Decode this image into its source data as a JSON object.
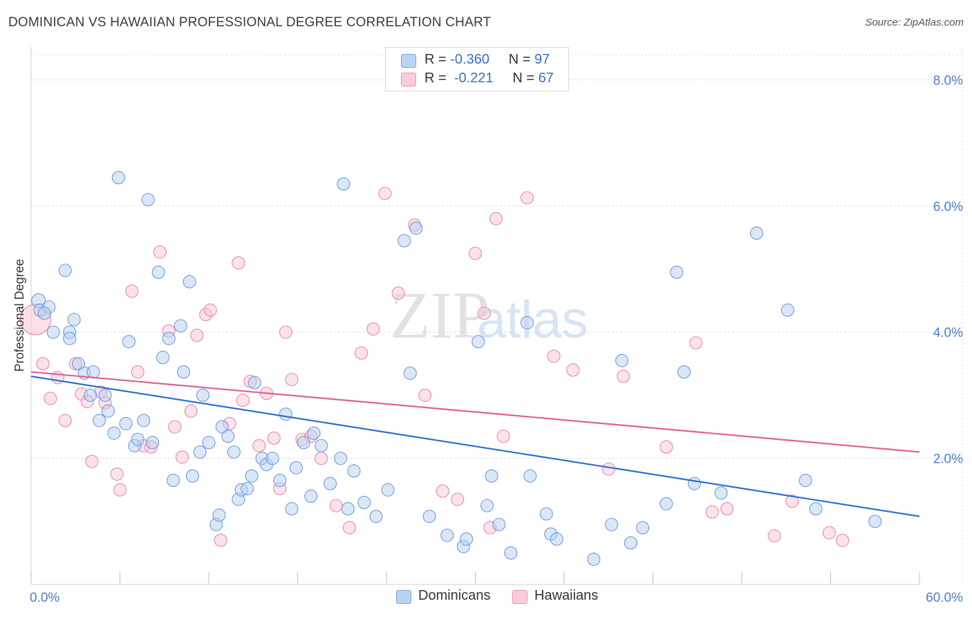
{
  "header": {
    "title": "DOMINICAN VS HAWAIIAN PROFESSIONAL DEGREE CORRELATION CHART",
    "source": "Source: ZipAtlas.com"
  },
  "watermark": {
    "zip": "ZIP",
    "atlas": "atlas"
  },
  "legend": {
    "rows": [
      {
        "r_label": "R =",
        "r_value": "-0.360",
        "n_label": "N =",
        "n_value": "97"
      },
      {
        "r_label": "R =",
        "r_value": "-0.221",
        "n_label": "N =",
        "n_value": "67"
      }
    ]
  },
  "bottom_legend": {
    "dominicans": "Dominicans",
    "hawaiians": "Hawaiians"
  },
  "chart_data": {
    "type": "scatter",
    "ylabel": "Professional Degree",
    "xlim": [
      0,
      60
    ],
    "ylim": [
      0,
      8.0
    ],
    "x_tick_labels": [
      "0.0%",
      "60.0%"
    ],
    "y_ticks": [
      2.0,
      4.0,
      6.0,
      8.0
    ],
    "y_tick_labels": [
      "2.0%",
      "4.0%",
      "6.0%",
      "8.0%"
    ],
    "grid": true,
    "colors": {
      "Dominicans": "#a9c8ee",
      "Dominicans_line": "#2a6fd1",
      "Hawaiians": "#f6bcd0",
      "Hawaiians_line": "#e0608f"
    },
    "series": [
      {
        "name": "Dominicans",
        "trend": {
          "x": [
            0,
            60
          ],
          "y": [
            3.3,
            1.08
          ]
        },
        "points": [
          [
            0.5,
            4.5
          ],
          [
            0.6,
            4.35
          ],
          [
            1.2,
            4.4
          ],
          [
            0.9,
            4.3
          ],
          [
            1.5,
            4.0
          ],
          [
            2.3,
            4.98
          ],
          [
            2.6,
            4.0
          ],
          [
            2.6,
            3.9
          ],
          [
            2.9,
            4.2
          ],
          [
            3.2,
            3.5
          ],
          [
            3.6,
            3.35
          ],
          [
            4.0,
            3.0
          ],
          [
            4.2,
            3.37
          ],
          [
            4.6,
            2.6
          ],
          [
            5.0,
            3.0
          ],
          [
            5.2,
            2.75
          ],
          [
            5.6,
            2.4
          ],
          [
            5.9,
            6.45
          ],
          [
            6.4,
            2.55
          ],
          [
            6.6,
            3.85
          ],
          [
            7.0,
            2.2
          ],
          [
            7.2,
            2.3
          ],
          [
            7.6,
            2.6
          ],
          [
            7.9,
            6.1
          ],
          [
            8.2,
            2.25
          ],
          [
            8.6,
            4.95
          ],
          [
            8.9,
            3.6
          ],
          [
            9.3,
            3.9
          ],
          [
            9.6,
            1.65
          ],
          [
            10.1,
            4.1
          ],
          [
            10.3,
            3.37
          ],
          [
            10.7,
            4.8
          ],
          [
            10.9,
            1.72
          ],
          [
            11.4,
            2.1
          ],
          [
            11.6,
            3.0
          ],
          [
            12.0,
            2.25
          ],
          [
            12.5,
            0.95
          ],
          [
            12.7,
            1.1
          ],
          [
            12.9,
            2.5
          ],
          [
            13.3,
            2.35
          ],
          [
            13.7,
            2.1
          ],
          [
            14.0,
            1.35
          ],
          [
            14.2,
            1.5
          ],
          [
            14.6,
            1.52
          ],
          [
            14.9,
            1.72
          ],
          [
            15.1,
            3.2
          ],
          [
            15.6,
            2.0
          ],
          [
            15.9,
            1.9
          ],
          [
            16.3,
            2.0
          ],
          [
            16.8,
            1.65
          ],
          [
            17.2,
            2.7
          ],
          [
            17.6,
            1.2
          ],
          [
            17.9,
            1.85
          ],
          [
            18.4,
            2.25
          ],
          [
            18.9,
            1.4
          ],
          [
            19.1,
            2.4
          ],
          [
            19.6,
            2.2
          ],
          [
            20.2,
            1.6
          ],
          [
            20.9,
            2.0
          ],
          [
            21.1,
            6.35
          ],
          [
            21.4,
            1.2
          ],
          [
            21.8,
            1.8
          ],
          [
            22.5,
            1.3
          ],
          [
            23.3,
            1.08
          ],
          [
            24.1,
            1.5
          ],
          [
            25.2,
            5.45
          ],
          [
            25.6,
            3.35
          ],
          [
            26.0,
            5.65
          ],
          [
            26.9,
            1.08
          ],
          [
            28.1,
            0.78
          ],
          [
            29.2,
            0.6
          ],
          [
            29.4,
            0.72
          ],
          [
            30.2,
            3.85
          ],
          [
            30.8,
            1.25
          ],
          [
            31.1,
            1.72
          ],
          [
            31.6,
            0.95
          ],
          [
            32.4,
            0.5
          ],
          [
            33.5,
            4.15
          ],
          [
            33.7,
            1.72
          ],
          [
            34.8,
            1.12
          ],
          [
            35.1,
            0.8
          ],
          [
            35.5,
            0.72
          ],
          [
            38.0,
            0.4
          ],
          [
            39.2,
            0.95
          ],
          [
            39.9,
            3.55
          ],
          [
            40.5,
            0.66
          ],
          [
            41.3,
            0.9
          ],
          [
            42.9,
            1.28
          ],
          [
            43.6,
            4.95
          ],
          [
            44.1,
            3.37
          ],
          [
            44.8,
            1.6
          ],
          [
            46.6,
            1.45
          ],
          [
            49.0,
            5.57
          ],
          [
            51.1,
            4.35
          ],
          [
            52.3,
            1.65
          ],
          [
            53.0,
            1.2
          ],
          [
            57.0,
            1.0
          ]
        ]
      },
      {
        "name": "Hawaiians",
        "trend": {
          "x": [
            0,
            60
          ],
          "y": [
            3.37,
            2.1
          ]
        },
        "points": [
          [
            0.3,
            4.2
          ],
          [
            0.8,
            3.5
          ],
          [
            1.3,
            2.95
          ],
          [
            1.8,
            3.28
          ],
          [
            2.3,
            2.6
          ],
          [
            3.0,
            3.5
          ],
          [
            3.4,
            3.02
          ],
          [
            3.8,
            2.9
          ],
          [
            4.1,
            1.95
          ],
          [
            4.7,
            3.05
          ],
          [
            5.0,
            2.88
          ],
          [
            5.8,
            1.75
          ],
          [
            6.0,
            1.5
          ],
          [
            6.8,
            4.65
          ],
          [
            7.2,
            3.37
          ],
          [
            7.6,
            2.2
          ],
          [
            8.1,
            2.18
          ],
          [
            8.7,
            5.27
          ],
          [
            9.3,
            4.02
          ],
          [
            9.7,
            2.5
          ],
          [
            10.2,
            2.02
          ],
          [
            10.8,
            2.75
          ],
          [
            11.2,
            3.95
          ],
          [
            11.8,
            4.28
          ],
          [
            12.1,
            4.35
          ],
          [
            12.8,
            0.7
          ],
          [
            13.4,
            2.55
          ],
          [
            14.0,
            5.1
          ],
          [
            14.3,
            2.92
          ],
          [
            14.8,
            3.22
          ],
          [
            15.4,
            2.2
          ],
          [
            15.9,
            3.03
          ],
          [
            16.4,
            2.32
          ],
          [
            16.8,
            1.52
          ],
          [
            17.2,
            4.0
          ],
          [
            17.6,
            3.25
          ],
          [
            18.3,
            2.3
          ],
          [
            18.9,
            2.35
          ],
          [
            19.6,
            2.0
          ],
          [
            20.6,
            1.25
          ],
          [
            21.5,
            0.9
          ],
          [
            22.3,
            3.67
          ],
          [
            23.1,
            4.05
          ],
          [
            23.9,
            6.2
          ],
          [
            24.8,
            4.62
          ],
          [
            25.9,
            5.7
          ],
          [
            26.6,
            3.0
          ],
          [
            27.8,
            1.48
          ],
          [
            28.8,
            1.35
          ],
          [
            30.0,
            5.25
          ],
          [
            30.6,
            4.3
          ],
          [
            31.0,
            0.9
          ],
          [
            31.4,
            5.8
          ],
          [
            31.9,
            2.35
          ],
          [
            33.5,
            6.13
          ],
          [
            35.3,
            3.62
          ],
          [
            36.6,
            3.4
          ],
          [
            39.0,
            1.83
          ],
          [
            40.0,
            3.3
          ],
          [
            42.9,
            2.18
          ],
          [
            44.9,
            3.83
          ],
          [
            46.0,
            1.15
          ],
          [
            47.0,
            1.2
          ],
          [
            50.2,
            0.77
          ],
          [
            51.4,
            1.32
          ],
          [
            53.9,
            0.82
          ],
          [
            54.8,
            0.7
          ]
        ]
      }
    ]
  }
}
